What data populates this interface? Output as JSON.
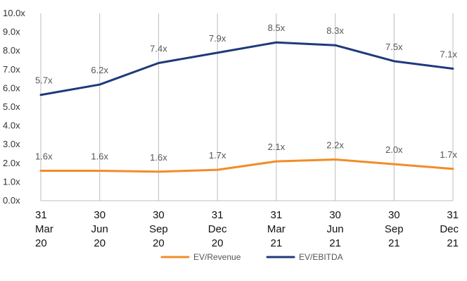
{
  "chart_data": {
    "type": "line",
    "categories": [
      [
        "31",
        "Mar",
        "20"
      ],
      [
        "30",
        "Jun",
        "20"
      ],
      [
        "30",
        "Sep",
        "20"
      ],
      [
        "31",
        "Dec",
        "20"
      ],
      [
        "31",
        "Mar",
        "21"
      ],
      [
        "30",
        "Jun",
        "21"
      ],
      [
        "30",
        "Sep",
        "21"
      ],
      [
        "31",
        "Dec",
        "21"
      ]
    ],
    "series": [
      {
        "name": "EV/Revenue",
        "color": "#F28C28",
        "values": [
          1.6,
          1.6,
          1.55,
          1.65,
          2.1,
          2.2,
          1.95,
          1.7
        ],
        "labels": [
          "1.6x",
          "1.6x",
          "1.6x",
          "1.7x",
          "2.1x",
          "2.2x",
          "2.0x",
          "1.7x"
        ]
      },
      {
        "name": "EV/EBITDA",
        "color": "#1F3A7A",
        "values": [
          5.65,
          6.2,
          7.35,
          7.9,
          8.45,
          8.3,
          7.45,
          7.05
        ],
        "labels": [
          "5.7x",
          "6.2x",
          "7.4x",
          "7.9x",
          "8.5x",
          "8.3x",
          "7.5x",
          "7.1x"
        ]
      }
    ],
    "ylim": [
      0,
      10
    ],
    "yticks": [
      "0.0x",
      "1.0x",
      "2.0x",
      "3.0x",
      "4.0x",
      "5.0x",
      "6.0x",
      "7.0x",
      "8.0x",
      "9.0x",
      "10.0x"
    ],
    "grid": "vertical",
    "legend": "bottom-center"
  }
}
